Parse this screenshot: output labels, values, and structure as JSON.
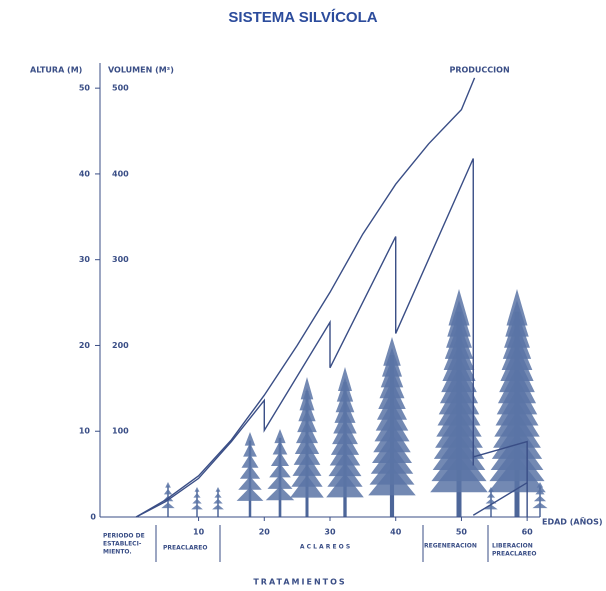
{
  "chart_data": {
    "type": "line",
    "title": "SISTEMA SILVÍCOLA",
    "y_label": "ALTURA (M)",
    "y2_label": "VOLUMEN (M³)",
    "x_label": "EDAD (AÑOS)",
    "xlim": [
      -5,
      65
    ],
    "xticks": [
      10,
      20,
      30,
      40,
      50,
      60
    ],
    "ylim": [
      0,
      52
    ],
    "yticks": [
      0,
      10,
      20,
      30,
      40,
      50
    ],
    "y2lim": [
      0,
      520
    ],
    "y2ticks": [
      100,
      200,
      300,
      400,
      500
    ],
    "series": [
      {
        "name": "PRODUCCION",
        "color": "#3a4e86",
        "axis": "y2",
        "x": [
          0.5,
          5,
          10,
          15,
          20,
          25,
          30,
          35,
          40,
          45,
          50,
          52
        ],
        "values": [
          0,
          20,
          48,
          90,
          142,
          200,
          262,
          330,
          388,
          435,
          475,
          512
        ]
      },
      {
        "color": "#3a4e86",
        "axis": "y2",
        "x": [
          0.5,
          5,
          10,
          15,
          20,
          20,
          30,
          30,
          40,
          40,
          51.8,
          51.8
        ],
        "values": [
          0,
          18,
          45,
          88,
          136,
          101,
          227,
          174,
          327,
          214,
          418,
          60
        ]
      },
      {
        "color": "#3a4e86",
        "axis": "y2",
        "x": [
          51.8,
          60,
          60
        ],
        "values": [
          70,
          88,
          0
        ]
      },
      {
        "color": "#3a4e86",
        "axis": "y2",
        "x": [
          51.8,
          60
        ],
        "values": [
          2,
          40
        ]
      }
    ],
    "treatments": {
      "title": "TRATAMIENTOS",
      "labels": [
        "PERIODO DE",
        "ESTABLECI-",
        "MIENTO.",
        "PREACLAREO",
        "A C L A R E O S",
        "REGENERACION",
        "LIBERACION",
        "PREACLAREO"
      ]
    }
  }
}
